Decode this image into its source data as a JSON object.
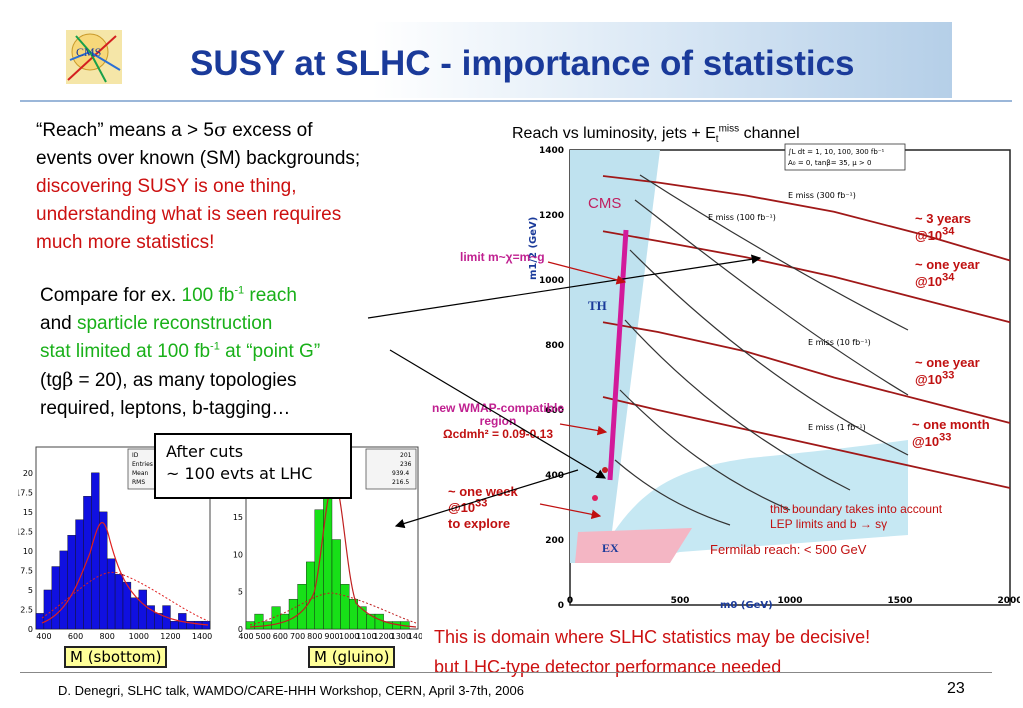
{
  "title": "SUSY at SLHC - importance of statistics",
  "logo_text": "CMS",
  "para1": {
    "line1a": "“Reach” means a > 5",
    "sigma": "σ",
    "line1b": " excess of",
    "line2": "events over known (SM) backgrounds;",
    "line3": "discovering SUSY is one thing,",
    "line4": "understanding what is seen requires",
    "line5": "much more statistics!"
  },
  "para2": {
    "line1a": "Compare for ex. ",
    "line1b": "100 fb",
    "line1b_sup": "-1",
    "line1c": " reach",
    "line2a": "and ",
    "line2b": "sparticle reconstruction",
    "line3a": "stat limited at 100 fb",
    "line3a_sup": "-1",
    "line3b": " at “point G”",
    "line4a": "(tg",
    "beta": "β",
    "line4b": " = 20), as many topologies",
    "line5": "required, leptons, b-tagging…"
  },
  "callout": {
    "line1": "After cuts",
    "line2": "~ 100 evts at LHC"
  },
  "hist_labels": {
    "left": "M (sbottom)",
    "right": "M (gluino)"
  },
  "plot_title": {
    "a": "Reach vs luminosity, jets + E",
    "sub": "t",
    "sup": "miss",
    "b": " channel"
  },
  "plot": {
    "cms_label": "CMS",
    "th_label": "TH",
    "ex_label": "EX",
    "yaxis_label": "m1/2 (GeV)",
    "xaxis_label": "m0  (GeV)",
    "legend_line1": "∫L dt = 1, 10, 100, 300 fb⁻¹",
    "legend_line2": "A₀ = 0, tanβ= 35, μ > 0",
    "limit_label": "limit m~χ=m~g",
    "wmap_line1": "new WMAP-compatible",
    "wmap_line2": "region",
    "wmap_line3": "Ωcdmh² = 0.09-0.13",
    "week_line1": "~ one week",
    "week_line2": "@10",
    "week_sup": "33",
    "week_line3": "to explore",
    "boundary_line1": "this boundary takes into account",
    "boundary_line2": "LEP limits and  b → sγ",
    "fermilab": "Fermilab reach: < 500 GeV",
    "curve_labels": [
      "E  miss (300 fb⁻¹)",
      "E  miss (100 fb⁻¹)",
      "E  miss (10 fb⁻¹)",
      "E  miss (1 fb⁻¹)"
    ],
    "lumi_labels": [
      {
        "line1": "~ 3 years",
        "line2": "@10",
        "sup": "34"
      },
      {
        "line1": "~ one year",
        "line2": "@10",
        "sup": "34"
      },
      {
        "line1": "~ one year",
        "line2": "@10",
        "sup": "33"
      },
      {
        "line1": "~ one month",
        "line2": "@10",
        "sup": "33"
      }
    ]
  },
  "chart_data": [
    {
      "type": "line",
      "xlabel": "m0  (GeV)",
      "ylabel": "m1/2 (GeV)",
      "xlim": [
        0,
        2000
      ],
      "ylim": [
        0,
        1400
      ],
      "x_ticks": [
        "0",
        "500",
        "1000",
        "1500",
        "2000"
      ],
      "y_ticks": [
        "0",
        "200",
        "400",
        "600",
        "800",
        "1000",
        "1200",
        "1400"
      ],
      "series": [
        {
          "name": "~ 3 years @10^34",
          "x": [
            150,
            400,
            800,
            1200,
            1600,
            2000
          ],
          "y": [
            1320,
            1300,
            1260,
            1210,
            1140,
            1060
          ]
        },
        {
          "name": "~ one year @10^34",
          "x": [
            150,
            400,
            800,
            1200,
            1600,
            2000
          ],
          "y": [
            1150,
            1120,
            1070,
            1010,
            940,
            870
          ]
        },
        {
          "name": "~ one year @10^33",
          "x": [
            150,
            400,
            800,
            1200,
            1600,
            2000
          ],
          "y": [
            870,
            840,
            780,
            700,
            630,
            560
          ]
        },
        {
          "name": "~ one month @10^33",
          "x": [
            150,
            400,
            800,
            1200,
            1600,
            2000
          ],
          "y": [
            640,
            600,
            540,
            480,
            420,
            360
          ]
        }
      ]
    },
    {
      "type": "bar",
      "title": "M (sbottom)",
      "xlabel": "",
      "ylabel": "",
      "x_ticks": [
        "400",
        "600",
        "800",
        "1000",
        "1200",
        "1400"
      ],
      "y_ticks": [
        "0",
        "2.5",
        "5",
        "7.5",
        "10",
        "12.5",
        "15",
        "17.5",
        "20"
      ],
      "ylim": [
        0,
        21
      ],
      "categories": [
        375,
        425,
        475,
        525,
        575,
        625,
        675,
        725,
        775,
        825,
        875,
        925,
        975,
        1025,
        1075,
        1125,
        1175,
        1225,
        1275,
        1325,
        1375,
        1425
      ],
      "values": [
        2,
        5,
        8,
        10,
        12,
        14,
        17,
        20,
        15,
        9,
        7,
        6,
        4,
        5,
        3,
        2,
        3,
        1,
        2,
        1,
        1,
        1
      ],
      "stats": [
        {
          "label": "ID",
          "value": ""
        },
        {
          "label": "Entries",
          "value": ""
        },
        {
          "label": "Mean",
          "value": ""
        },
        {
          "label": "RMS",
          "value": ""
        }
      ]
    },
    {
      "type": "bar",
      "title": "M (gluino)",
      "xlabel": "",
      "ylabel": "",
      "x_ticks": [
        "400",
        "500",
        "600",
        "700",
        "800",
        "900",
        "1000",
        "1100",
        "1200",
        "1300",
        "1400"
      ],
      "y_ticks": [
        "0",
        "5",
        "10",
        "15"
      ],
      "ylim": [
        0,
        22
      ],
      "categories": [
        425,
        475,
        525,
        575,
        625,
        675,
        725,
        775,
        825,
        875,
        925,
        975,
        1025,
        1075,
        1125,
        1175,
        1225,
        1275,
        1325,
        1375
      ],
      "values": [
        1,
        2,
        1,
        3,
        2,
        4,
        6,
        9,
        16,
        20,
        12,
        6,
        4,
        3,
        2,
        2,
        1,
        1,
        1,
        0
      ],
      "stats": [
        {
          "label": "",
          "value": "201"
        },
        {
          "label": "",
          "value": "236"
        },
        {
          "label": "",
          "value": "939.4"
        },
        {
          "label": "",
          "value": "216.5"
        }
      ]
    }
  ],
  "footer": "D. Denegri, SLHC talk, WAMDO/CARE-HHH  Workshop, CERN,  April 3-7th, 2006",
  "slide_number": "23",
  "bottom_note": {
    "line1": "This is domain where SLHC statistics may be decisive!",
    "line2": " but LHC-type detector  performance needed"
  }
}
